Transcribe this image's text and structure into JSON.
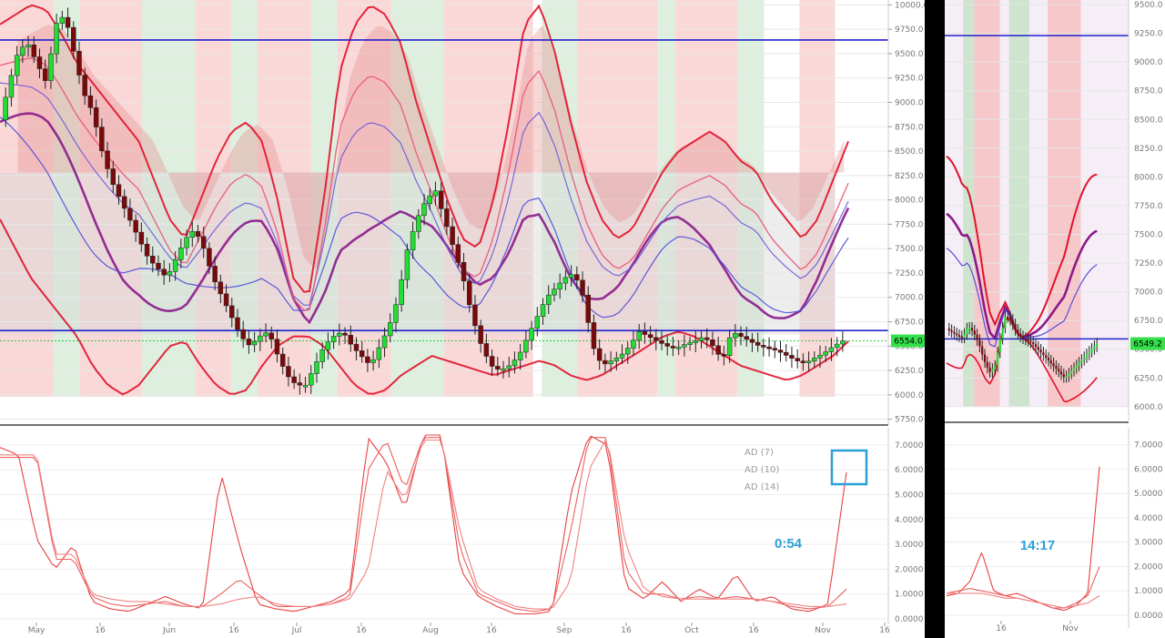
{
  "chart_data": [
    {
      "name": "main-price-chart",
      "type": "candlestick",
      "ylim": [
        5700,
        10050
      ],
      "y_ticks": [
        "10000.0",
        "9750.0",
        "9500.0",
        "9250.0",
        "9000.0",
        "8750.0",
        "8500.0",
        "8250.0",
        "8000.0",
        "7750.0",
        "7500.0",
        "7250.0",
        "7000.0",
        "6750.0",
        "6500.0",
        "6250.0",
        "6000.0",
        "5750.0"
      ],
      "y_tick_values": [
        10000,
        9750,
        9500,
        9250,
        9000,
        8750,
        8500,
        8250,
        8000,
        7750,
        7500,
        7250,
        7000,
        6750,
        6500,
        6250,
        6000,
        5750
      ],
      "x_ticks": [
        "May",
        "16",
        "Jun",
        "16",
        "Jul",
        "16",
        "Aug",
        "16",
        "Sep",
        "16",
        "Oct",
        "16",
        "Nov",
        "16"
      ],
      "current_price_label": "6554.0",
      "current_price": 6554,
      "horizontal_lines": [
        9640,
        6660
      ],
      "close_path": [
        8820,
        9200,
        9540,
        9600,
        9400,
        9200,
        9800,
        9900,
        9500,
        9100,
        8900,
        8500,
        8200,
        8000,
        7800,
        7600,
        7400,
        7300,
        7200,
        7400,
        7600,
        7700,
        7500,
        7200,
        7000,
        6800,
        6600,
        6500,
        6600,
        6650,
        6400,
        6200,
        6100,
        6100,
        6300,
        6500,
        6600,
        6650,
        6500,
        6400,
        6300,
        6500,
        6700,
        7000,
        7500,
        7800,
        8000,
        8100,
        7800,
        7500,
        7200,
        6800,
        6500,
        6300,
        6250,
        6300,
        6400,
        6600,
        6800,
        7000,
        7100,
        7200,
        7250,
        7000,
        6500,
        6300,
        6350,
        6400,
        6500,
        6650,
        6600,
        6550,
        6500,
        6480,
        6520,
        6550,
        6600,
        6500,
        6350,
        6650,
        6600,
        6550,
        6500,
        6480,
        6450,
        6400,
        6350,
        6330,
        6380,
        6430,
        6500,
        6554
      ],
      "band_upper_path": [
        9800,
        9900,
        10000,
        9950,
        9700,
        9400,
        9200,
        9000,
        8800,
        8600,
        8200,
        7800,
        7600,
        8000,
        8400,
        8700,
        8800,
        8600,
        8000,
        7200,
        7000,
        8000,
        9300,
        9800,
        10000,
        9900,
        9600,
        9000,
        8500,
        8000,
        7600,
        7500,
        8000,
        8800,
        9800,
        10000,
        9500,
        8800,
        8200,
        7800,
        7600,
        7700,
        8000,
        8300,
        8500,
        8600,
        8700,
        8600,
        8400,
        8300,
        8000,
        7800,
        7600,
        7800,
        8200,
        8600
      ],
      "band_lower_path": [
        7800,
        7500,
        7200,
        7000,
        6800,
        6600,
        6300,
        6100,
        6000,
        6100,
        6300,
        6500,
        6550,
        6300,
        6100,
        6000,
        6050,
        6300,
        6500,
        6600,
        6600,
        6500,
        6300,
        6100,
        6000,
        6050,
        6200,
        6300,
        6400,
        6350,
        6300,
        6250,
        6200,
        6250,
        6300,
        6350,
        6300,
        6200,
        6150,
        6200,
        6300,
        6400,
        6500,
        6600,
        6650,
        6600,
        6500,
        6400,
        6300,
        6250,
        6200,
        6150,
        6200,
        6300,
        6400,
        6550
      ],
      "ad_series_names": [
        "AD (7)",
        "AD (10)",
        "AD (14)"
      ],
      "timer_label": "0:54"
    },
    {
      "name": "oscillator-panel",
      "type": "line",
      "ylim": [
        0,
        7.4
      ],
      "y_ticks": [
        "7.0000",
        "6.0000",
        "5.0000",
        "4.0000",
        "3.0000",
        "2.0000",
        "1.0000",
        "0.0000"
      ],
      "y_tick_values": [
        7,
        6,
        5,
        4,
        3,
        2,
        1,
        0
      ],
      "series": [
        {
          "name": "AD (7)",
          "values": [
            6.9,
            6.6,
            3.2,
            2.0,
            3.0,
            0.7,
            0.4,
            0.3,
            0.6,
            0.9,
            0.6,
            0.4,
            5.9,
            3.0,
            0.6,
            0.4,
            0.3,
            0.5,
            0.7,
            1.1,
            7.3,
            6.3,
            4.4,
            7.4,
            7.4,
            2.0,
            0.9,
            0.5,
            0.2,
            0.2,
            0.3,
            5.0,
            7.4,
            7.0,
            1.3,
            0.8,
            1.5,
            0.7,
            1.2,
            0.8,
            1.8,
            0.7,
            0.9,
            0.4,
            0.3,
            0.6,
            5.9
          ]
        },
        {
          "name": "AD (10)",
          "values": [
            6.5,
            6.5,
            6.5,
            2.4,
            2.4,
            0.9,
            0.6,
            0.5,
            0.6,
            0.7,
            0.5,
            0.5,
            1.0,
            1.6,
            1.0,
            0.5,
            0.5,
            0.5,
            0.6,
            0.9,
            6.0,
            7.2,
            5.2,
            7.3,
            7.3,
            2.8,
            1.0,
            0.7,
            0.4,
            0.3,
            0.4,
            3.5,
            7.3,
            7.3,
            2.0,
            1.0,
            1.0,
            0.8,
            0.9,
            0.8,
            0.9,
            0.8,
            0.7,
            0.5,
            0.4,
            0.5,
            1.2
          ]
        },
        {
          "name": "AD (14)",
          "values": [
            6.6,
            6.6,
            6.6,
            2.6,
            2.6,
            1.0,
            0.8,
            0.7,
            0.7,
            0.6,
            0.5,
            0.5,
            0.6,
            0.8,
            0.9,
            0.6,
            0.5,
            0.5,
            0.6,
            0.8,
            2.0,
            6.0,
            4.8,
            7.2,
            7.2,
            3.5,
            1.2,
            0.8,
            0.5,
            0.4,
            0.4,
            1.5,
            6.0,
            7.3,
            3.0,
            1.2,
            0.9,
            0.8,
            0.8,
            0.8,
            0.8,
            0.8,
            0.7,
            0.6,
            0.5,
            0.5,
            0.6
          ]
        }
      ]
    },
    {
      "name": "right-price-chart",
      "type": "candlestick",
      "ylim": [
        5880,
        9540
      ],
      "y_ticks": [
        "9500.0",
        "9250.0",
        "9000.0",
        "8750.0",
        "8500.0",
        "8250.0",
        "8000.0",
        "7750.0",
        "7500.0",
        "7250.0",
        "7000.0",
        "6750.0",
        "6500.0",
        "6250.0",
        "6000.0"
      ],
      "y_tick_values": [
        9500,
        9250,
        9000,
        8750,
        8500,
        8250,
        8000,
        7750,
        7500,
        7250,
        7000,
        6750,
        6500,
        6250,
        6000
      ],
      "x_ticks": [
        "16",
        "Nov"
      ],
      "current_price_label": "6549.2",
      "current_price": 6549.2,
      "horizontal_lines": [
        9230,
        6590
      ],
      "close_path": [
        6680,
        6650,
        6620,
        6600,
        6700,
        6650,
        6550,
        6400,
        6300,
        6350,
        6600,
        6800,
        6750,
        6650,
        6600,
        6580,
        6550,
        6500,
        6450,
        6400,
        6350,
        6300,
        6250,
        6300,
        6350,
        6400,
        6450,
        6500,
        6549
      ],
      "timer_label": "14:17"
    },
    {
      "name": "right-oscillator",
      "type": "line",
      "ylim": [
        0,
        7.4
      ],
      "y_ticks": [
        "7.0000",
        "6.0000",
        "5.0000",
        "4.0000",
        "3.0000",
        "2.0000",
        "1.0000",
        "0.0000"
      ],
      "y_tick_values": [
        7,
        6,
        5,
        4,
        3,
        2,
        1,
        0
      ],
      "series": [
        {
          "name": "AD (7)",
          "values": [
            0.8,
            0.9,
            1.4,
            2.6,
            1.0,
            0.8,
            0.9,
            0.7,
            0.5,
            0.3,
            0.2,
            0.4,
            0.9,
            6.1
          ]
        },
        {
          "name": "AD (10)",
          "values": [
            0.9,
            1.0,
            1.1,
            1.0,
            0.9,
            0.8,
            0.7,
            0.6,
            0.5,
            0.3,
            0.3,
            0.5,
            0.8,
            2.0
          ]
        },
        {
          "name": "AD (14)",
          "values": [
            0.9,
            0.9,
            0.9,
            0.9,
            0.8,
            0.7,
            0.7,
            0.6,
            0.5,
            0.4,
            0.3,
            0.4,
            0.5,
            0.8
          ]
        }
      ]
    }
  ]
}
